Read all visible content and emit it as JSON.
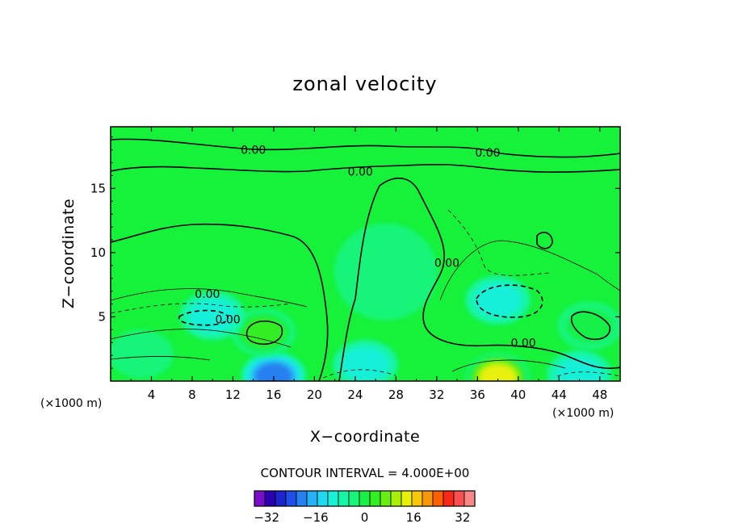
{
  "chart_data": {
    "type": "contour",
    "title": "zonal velocity",
    "xlabel": "X−coordinate",
    "ylabel": "Z−coordinate",
    "x_unit": "(×1000 m)",
    "z_unit": "(×1000 m)",
    "xlim": [
      0,
      50
    ],
    "zlim": [
      0,
      19.8
    ],
    "x_ticks": [
      4,
      8,
      12,
      16,
      20,
      24,
      28,
      32,
      36,
      40,
      44,
      48
    ],
    "x_tick_labels": [
      "4",
      "8",
      "12",
      "16",
      "20",
      "24",
      "28",
      "32",
      "36",
      "40",
      "44",
      "48"
    ],
    "z_ticks": [
      5,
      10,
      15
    ],
    "z_tick_labels": [
      "5",
      "10",
      "15"
    ],
    "contour_interval_text": "CONTOUR INTERVAL = 4.000E+00",
    "contour_interval": 4,
    "contour_labels": [
      {
        "text": "0.00",
        "x": 14.0,
        "z": 18.0
      },
      {
        "text": "0.00",
        "x": 37.0,
        "z": 17.8
      },
      {
        "text": "0.00",
        "x": 24.5,
        "z": 16.3
      },
      {
        "text": "0.00",
        "x": 33.0,
        "z": 9.2
      },
      {
        "text": "0.00",
        "x": 9.5,
        "z": 6.8
      },
      {
        "text": "0.00",
        "x": 11.5,
        "z": 4.8
      },
      {
        "text": "0.00",
        "x": 40.5,
        "z": 3.0
      }
    ],
    "features": [
      {
        "x": 16,
        "z": 0.4,
        "value": -22
      },
      {
        "x": 38,
        "z": 0.3,
        "value": 26
      },
      {
        "x": 15,
        "z": 3.8,
        "value": 12
      },
      {
        "x": 27,
        "z": 8.5,
        "value": 7
      },
      {
        "x": 38,
        "z": 6.3,
        "value": -10
      },
      {
        "x": 10,
        "z": 5.1,
        "value": -8
      },
      {
        "x": 47,
        "z": 4.3,
        "value": 11
      },
      {
        "x": 46,
        "z": 0.5,
        "value": -10
      },
      {
        "x": 25,
        "z": 1.3,
        "value": -9
      },
      {
        "x": 3,
        "z": 2.1,
        "value": 6
      }
    ],
    "colorbar": {
      "min": -36,
      "max": 36,
      "step": 4,
      "colors": [
        "#7a0ec8",
        "#2a00b0",
        "#1e24cc",
        "#1f4fe6",
        "#2680f0",
        "#27b0f5",
        "#20d8f0",
        "#19f0d8",
        "#15f5a8",
        "#14f57a",
        "#18f048",
        "#30ee20",
        "#68ee10",
        "#a8f008",
        "#e8f008",
        "#f8c808",
        "#f89808",
        "#f86000",
        "#f82818",
        "#f85050",
        "#f88888"
      ],
      "tick_values": [
        -32,
        -16,
        0,
        16,
        32
      ],
      "tick_labels": [
        "−32",
        "−16",
        "0",
        "16",
        "32"
      ]
    },
    "background_color": "#16f23a"
  }
}
